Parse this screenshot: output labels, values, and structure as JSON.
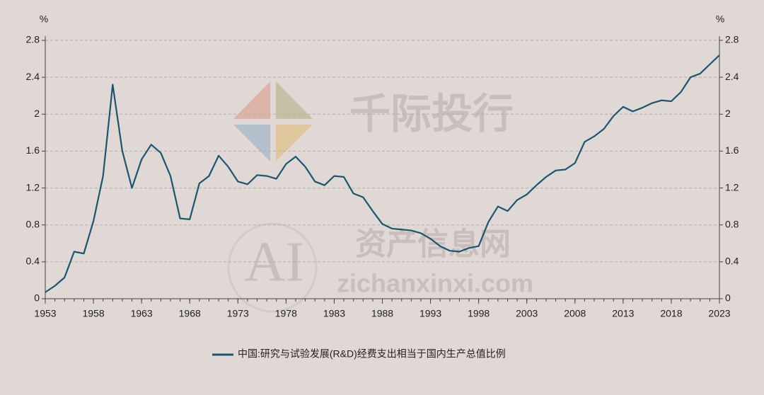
{
  "chart_data": {
    "type": "line",
    "ylabel": "%",
    "y2label": "%",
    "x": [
      1953,
      1954,
      1955,
      1956,
      1957,
      1958,
      1959,
      1960,
      1961,
      1962,
      1963,
      1964,
      1965,
      1966,
      1967,
      1968,
      1969,
      1970,
      1971,
      1972,
      1973,
      1974,
      1975,
      1976,
      1977,
      1978,
      1979,
      1980,
      1981,
      1982,
      1983,
      1984,
      1985,
      1986,
      1987,
      1988,
      1989,
      1990,
      1991,
      1992,
      1993,
      1994,
      1995,
      1996,
      1997,
      1998,
      1999,
      2000,
      2001,
      2002,
      2003,
      2004,
      2005,
      2006,
      2007,
      2008,
      2009,
      2010,
      2011,
      2012,
      2013,
      2014,
      2015,
      2016,
      2017,
      2018,
      2019,
      2020,
      2021,
      2022,
      2023
    ],
    "series": [
      {
        "name": "中国:研究与试验发展(R&D)经费支出相当于国内生产总值比例",
        "color": "#1b5670",
        "values": [
          0.07,
          0.14,
          0.23,
          0.51,
          0.49,
          0.84,
          1.33,
          2.32,
          1.6,
          1.2,
          1.51,
          1.67,
          1.58,
          1.33,
          0.87,
          0.86,
          1.25,
          1.33,
          1.55,
          1.43,
          1.27,
          1.24,
          1.34,
          1.33,
          1.3,
          1.46,
          1.54,
          1.43,
          1.27,
          1.23,
          1.33,
          1.32,
          1.14,
          1.1,
          0.95,
          0.81,
          0.76,
          0.75,
          0.74,
          0.71,
          0.65,
          0.57,
          0.52,
          0.51,
          0.55,
          0.57,
          0.83,
          1.0,
          0.95,
          1.07,
          1.13,
          1.23,
          1.32,
          1.39,
          1.4,
          1.47,
          1.7,
          1.76,
          1.84,
          1.98,
          2.08,
          2.03,
          2.07,
          2.12,
          2.15,
          2.14,
          2.24,
          2.4,
          2.44,
          2.54,
          2.64
        ]
      }
    ],
    "xlim": [
      1953,
      2023
    ],
    "xticks": [
      1953,
      1958,
      1963,
      1968,
      1973,
      1978,
      1983,
      1988,
      1993,
      1998,
      2003,
      2008,
      2013,
      2018,
      2023
    ],
    "ylim": [
      0,
      2.8
    ],
    "yticks": [
      0,
      0.4,
      0.8,
      1.2,
      1.6,
      2,
      2.4,
      2.8
    ],
    "y2lim": [
      0,
      2.8
    ],
    "y2ticks": [
      0,
      0.4,
      0.8,
      1.2,
      1.6,
      2,
      2.4,
      2.8
    ],
    "grid": true,
    "watermark": [
      "千际投行",
      "资产信息网",
      "zichanxinxi.com",
      "AI"
    ]
  }
}
